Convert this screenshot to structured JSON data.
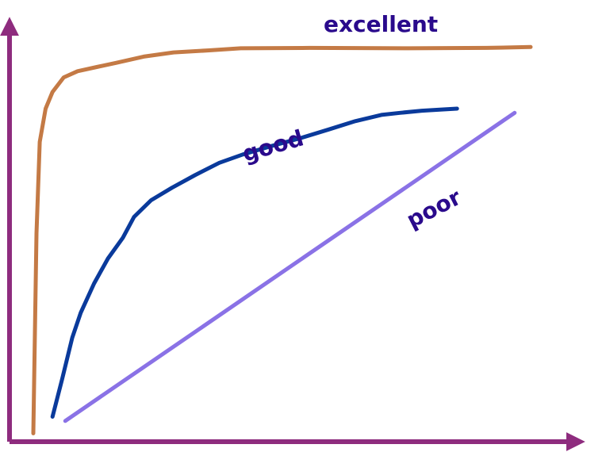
{
  "chart_data": {
    "type": "line",
    "title": "",
    "xlabel": "",
    "ylabel": "",
    "xlim": [
      0,
      100
    ],
    "ylim": [
      0,
      100
    ],
    "grid": false,
    "legend": "none",
    "colors": {
      "axis": "#8E2C7E",
      "label_text": "#2A0A8C",
      "excellent": "#C47A45",
      "good": "#0A3A9B",
      "poor": "#8A72E6"
    },
    "series": [
      {
        "name": "excellent",
        "x": [
          0,
          0.6,
          1.2,
          2.3,
          3.6,
          5.7,
          8.3,
          11.9,
          15.5,
          20.7,
          26.3,
          33.0,
          38.9,
          51.8,
          70.5,
          85.0,
          93.3
        ],
        "y": [
          2,
          50,
          72,
          80,
          84,
          87.5,
          89,
          90,
          91,
          92.5,
          93.5,
          94,
          94.5,
          94.6,
          94.5,
          94.6,
          94.8
        ]
      },
      {
        "name": "good",
        "x": [
          3.6,
          5.4,
          7.3,
          8.9,
          11.4,
          14.0,
          16.8,
          18.9,
          22.1,
          26.0,
          30.3,
          34.9,
          39.3,
          44.6,
          50.3,
          55.4,
          60.4,
          65.3,
          68.8,
          72.9,
          76.6,
          79.5
        ],
        "y": [
          6,
          15,
          25,
          31,
          38,
          44,
          49,
          54,
          58,
          61,
          64,
          67,
          69,
          71,
          73,
          75,
          77,
          78.5,
          79,
          79.5,
          79.8,
          80
        ]
      },
      {
        "name": "poor",
        "x": [
          6.0,
          90.3
        ],
        "y": [
          5,
          79
        ]
      }
    ],
    "annotations": [
      {
        "text": "excellent",
        "series": "excellent"
      },
      {
        "text": "good",
        "series": "good"
      },
      {
        "text": "poor",
        "series": "poor"
      }
    ]
  }
}
